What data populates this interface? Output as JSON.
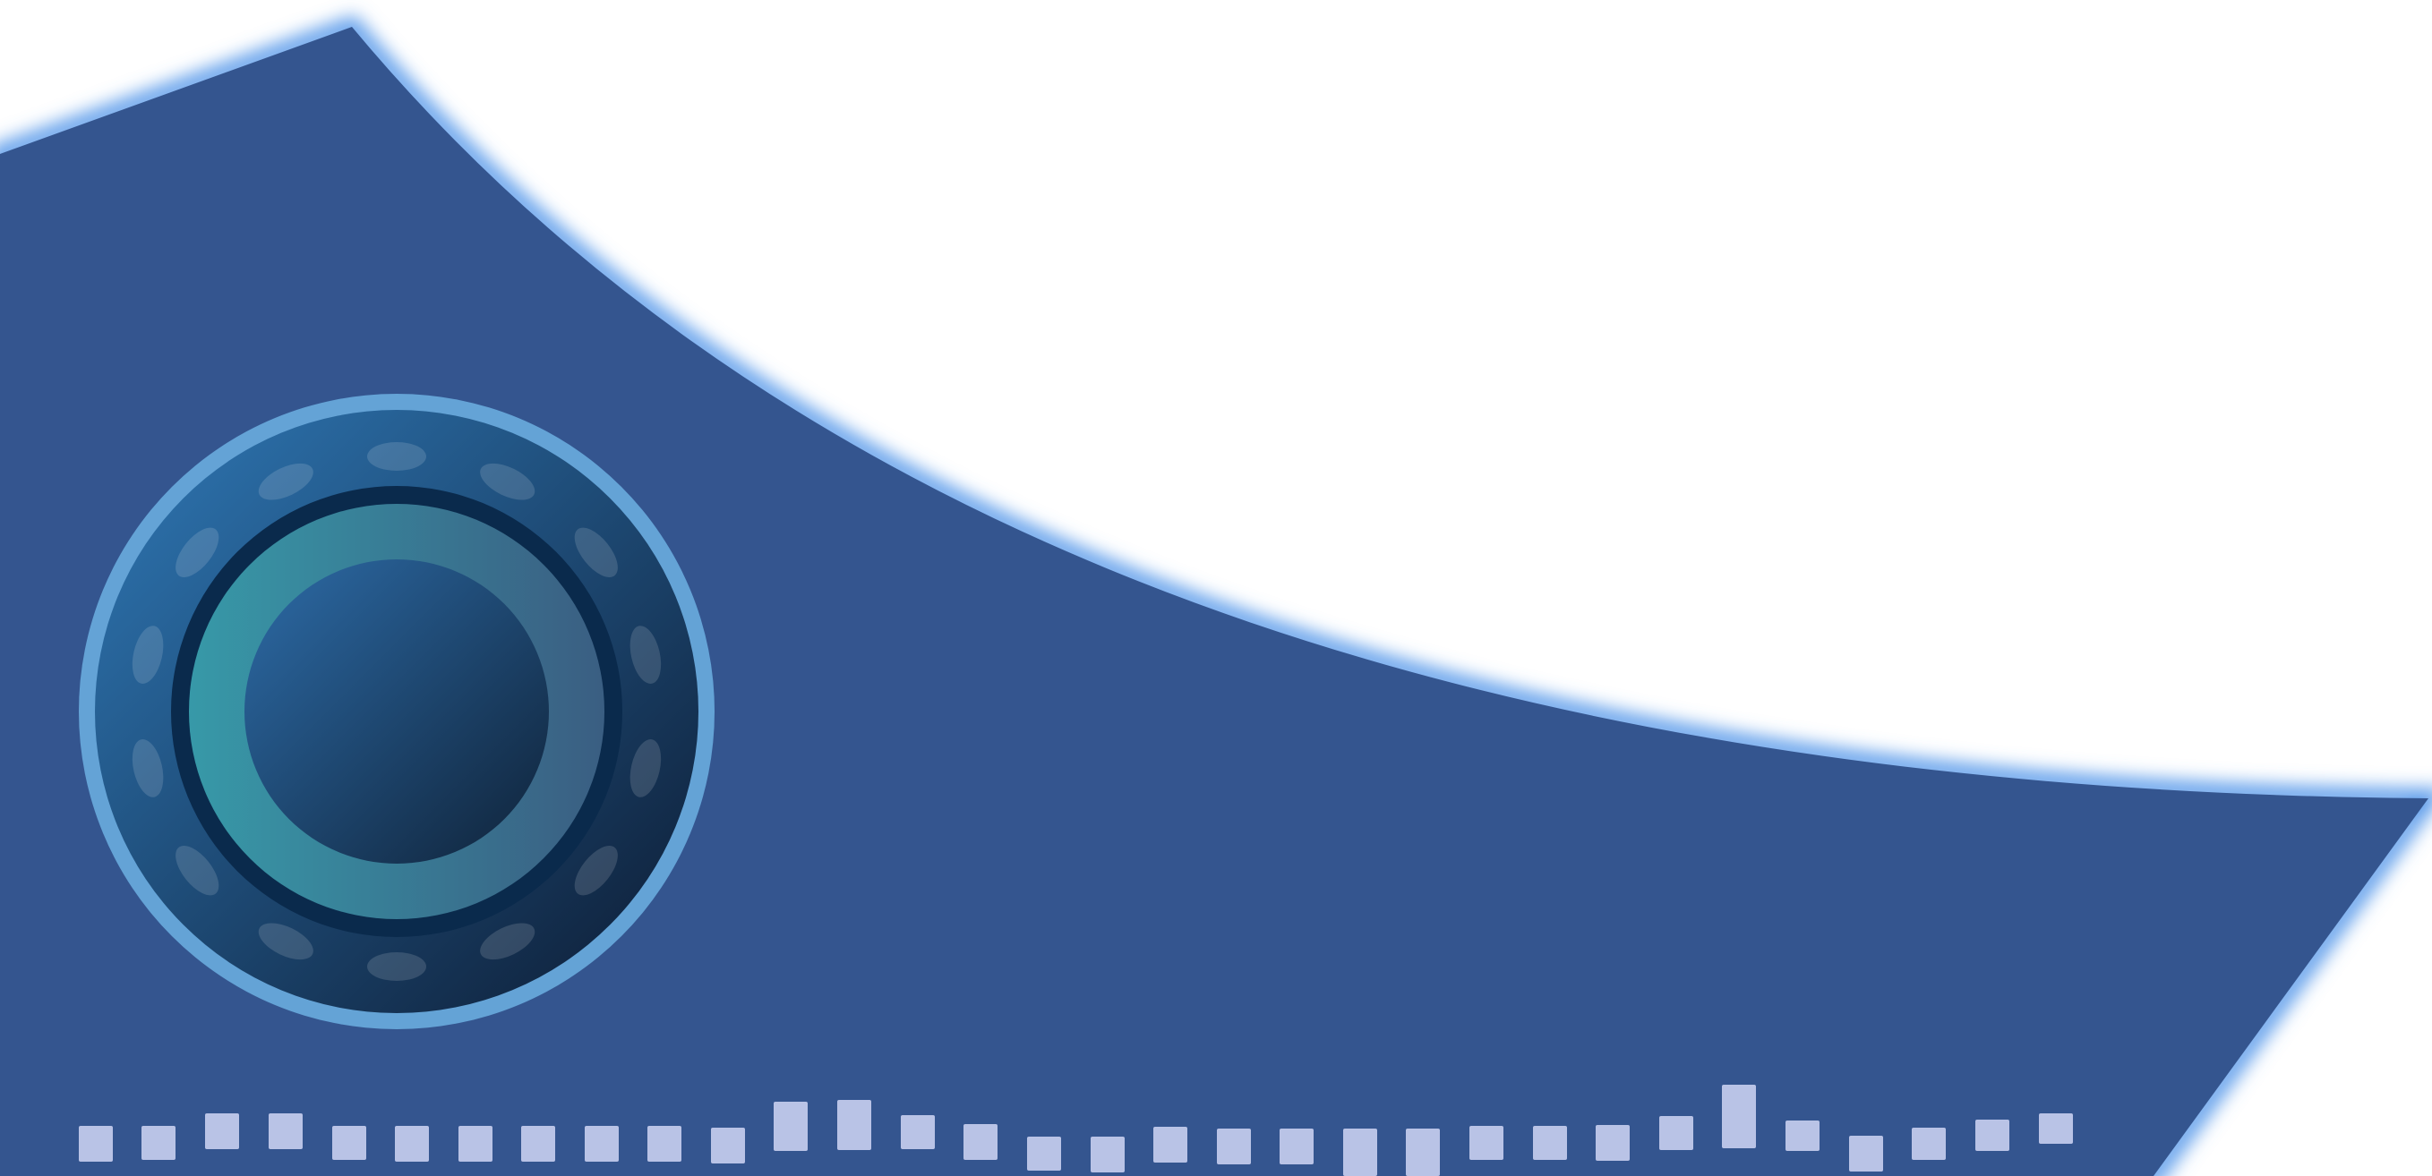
{
  "colors": {
    "background": "#ffffff",
    "panel_fill": "#34558f",
    "panel_glow": "#5b9bea",
    "dial_outer_ring": "#64a3d6",
    "dial_face_light": "#2f79b7",
    "dial_face_dark": "#0c1a31",
    "dial_inner_ring": "#0a2a4c",
    "dial_inner_face_light": "#3799a8",
    "dial_inner_face_dark": "#3a5e82",
    "dial_core_light": "#2d6ca8",
    "dial_core_dark": "#0f2238",
    "tick_marks": "#b9c3e6"
  },
  "dial": {
    "name": "round-dial",
    "marker_count": 14
  },
  "level_bars": {
    "name": "level-meter",
    "count": 32
  }
}
